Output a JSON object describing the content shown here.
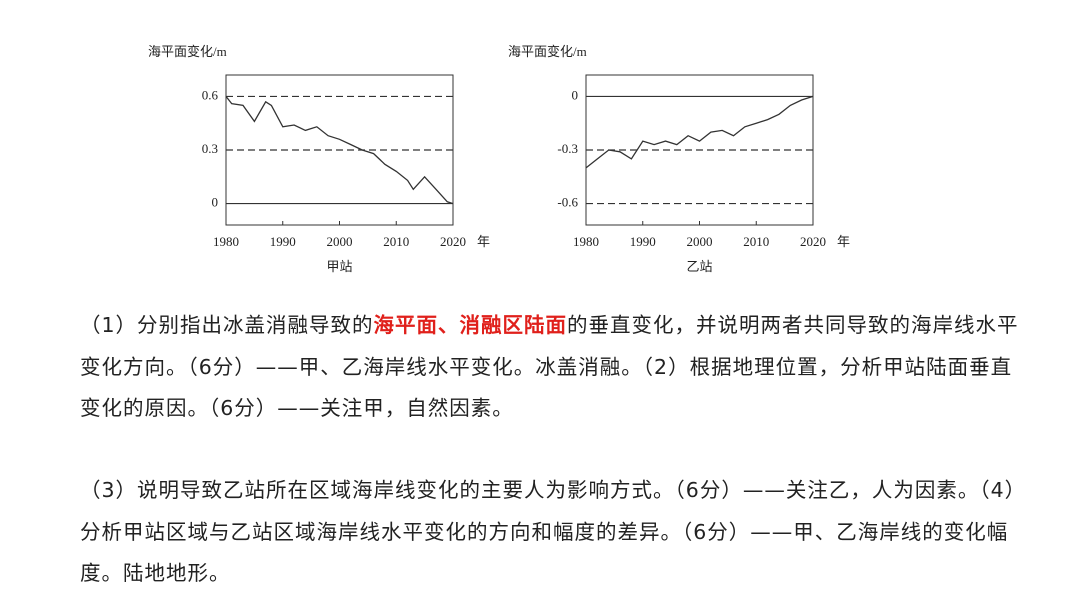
{
  "chart_data": [
    {
      "type": "line",
      "title": "甲站",
      "y_label": "海平面变化/m",
      "x_label": "年",
      "x": [
        1980,
        1981,
        1983,
        1985,
        1987,
        1988,
        1990,
        1992,
        1994,
        1996,
        1998,
        2000,
        2002,
        2004,
        2006,
        2008,
        2010,
        2012,
        2013,
        2015,
        2017,
        2019,
        2020
      ],
      "values": [
        0.6,
        0.56,
        0.55,
        0.46,
        0.57,
        0.55,
        0.43,
        0.44,
        0.41,
        0.43,
        0.38,
        0.36,
        0.33,
        0.3,
        0.28,
        0.22,
        0.18,
        0.13,
        0.08,
        0.15,
        0.08,
        0.01,
        0.0
      ],
      "color": "#333333",
      "xlim": [
        1980,
        2020
      ],
      "ylim": [
        -0.12,
        0.72
      ],
      "xticks": [
        1980,
        1990,
        2000,
        2010,
        2020
      ],
      "yticks": [
        0,
        0.3,
        0.6
      ]
    },
    {
      "type": "line",
      "title": "乙站",
      "y_label": "海平面变化/m",
      "x_label": "年",
      "x": [
        1980,
        1982,
        1984,
        1986,
        1988,
        1990,
        1992,
        1994,
        1996,
        1998,
        2000,
        2002,
        2004,
        2006,
        2008,
        2010,
        2012,
        2014,
        2016,
        2018,
        2020
      ],
      "values": [
        -0.4,
        -0.35,
        -0.3,
        -0.31,
        -0.35,
        -0.25,
        -0.27,
        -0.25,
        -0.27,
        -0.22,
        -0.25,
        -0.2,
        -0.19,
        -0.22,
        -0.17,
        -0.15,
        -0.13,
        -0.1,
        -0.05,
        -0.02,
        0
      ],
      "color": "#333333",
      "xlim": [
        1980,
        2020
      ],
      "ylim": [
        -0.72,
        0.12
      ],
      "xticks": [
        1980,
        1990,
        2000,
        2010,
        2020
      ],
      "yticks": [
        0,
        -0.3,
        -0.6
      ]
    }
  ],
  "paragraphs": [
    [
      "（1）分别指出冰盖消融导致的",
      "海平面、消融区陆面",
      "的垂直变化，并说明两者共同导致的海岸线水平变化方向。（6分）——甲、乙海岸线水平变化。冰盖消融。（2）根据地理位置，分析甲站陆面垂直变化的原因。（6分）——关注甲，自然因素。"
    ],
    [
      "（3）说明导致乙站所在区域海岸线变化的主要人为影响方式。（6分）——关注乙，人为因素。（4）分析甲站区域与乙站区域海岸线水平变化的方向和幅度的差异。（6分）——甲、乙海岸线的变化幅度。陆地地形。"
    ]
  ]
}
